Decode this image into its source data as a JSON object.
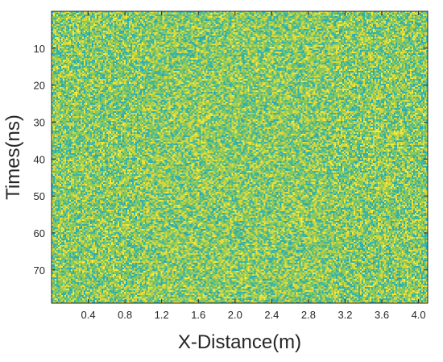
{
  "chart_data": {
    "type": "heatmap",
    "title": "",
    "xlabel": "X-Distance(m)",
    "ylabel": "Times(ns)",
    "xlim": [
      0,
      4.1
    ],
    "ylim": [
      0,
      79
    ],
    "y_reversed": true,
    "x_ticks": [
      0.4,
      0.8,
      1.2,
      1.6,
      2.0,
      2.4,
      2.8,
      3.2,
      3.6,
      4.0
    ],
    "x_tick_labels": [
      "0.4",
      "0.8",
      "1.2",
      "1.6",
      "2.0",
      "2.4",
      "2.8",
      "3.2",
      "3.6",
      "4.0"
    ],
    "y_ticks": [
      10,
      20,
      30,
      40,
      50,
      60,
      70
    ],
    "y_tick_labels": [
      "10",
      "20",
      "30",
      "40",
      "50",
      "60",
      "70"
    ],
    "grid": false,
    "colorbar": false,
    "colormap": "parula",
    "palette": [
      "#2aa8b8",
      "#3bb6a6",
      "#8bc85a",
      "#d7d63c",
      "#f5e93a"
    ],
    "description_values": "random noise field (values roughly uniform across the colormap)"
  }
}
